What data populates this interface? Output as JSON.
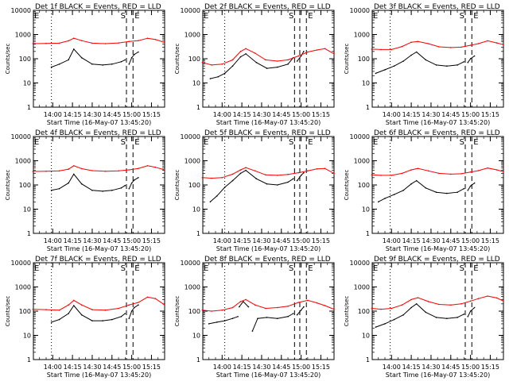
{
  "figure": {
    "time_range": [
      "13:45:20",
      "15:25:00"
    ],
    "x_ticks": [
      "14:00",
      "14:15",
      "14:30",
      "14:45",
      "15:00",
      "15:15"
    ],
    "y_ticks": [
      "1",
      "10",
      "100",
      "1000",
      "10000"
    ],
    "ylim": [
      1,
      10000
    ],
    "ylabel": "Counts/sec",
    "xlabel": "Start Time (16-May-07 13:45:20)",
    "colors": {
      "events": "#000000",
      "lld": "#ff0000",
      "axis": "#000000"
    }
  },
  "chart_data": [
    {
      "type": "line",
      "title": "Det 1f BLACK = Events, RED = LLD",
      "xlabel": "Start Time (16-May-07 13:45:20)",
      "ylabel": "Counts/sec",
      "marker_e": "E",
      "marker_s": "S",
      "marker_e2": "E",
      "markers": {
        "e_dotted": "13:59",
        "s_dashed": "14:56",
        "e_dashed": "15:01"
      },
      "series": [
        {
          "name": "Events",
          "color": "#000000",
          "x": [
            "13:59",
            "14:05",
            "14:12",
            "14:16",
            "14:22",
            "14:30",
            "14:38",
            "14:45",
            "14:52",
            "14:55"
          ],
          "values": [
            45,
            60,
            90,
            250,
            110,
            60,
            55,
            60,
            75,
            90
          ]
        },
        {
          "name": "Events",
          "color": "#000000",
          "x": [
            "14:58",
            "15:00",
            "15:02",
            "15:05"
          ],
          "values": [
            60,
            110,
            150,
            190
          ]
        },
        {
          "name": "LLD",
          "color": "#ff0000",
          "x": [
            "13:45",
            "13:55",
            "14:05",
            "14:12",
            "14:16",
            "14:22",
            "14:30",
            "14:40",
            "14:50",
            "14:58",
            "15:05",
            "15:12",
            "15:18",
            "15:25"
          ],
          "values": [
            420,
            430,
            440,
            550,
            700,
            560,
            440,
            420,
            450,
            520,
            560,
            700,
            620,
            470
          ]
        }
      ]
    },
    {
      "type": "line",
      "title": "Det 2f BLACK = Events, RED = LLD",
      "xlabel": "Start Time (16-May-07 13:45:20)",
      "ylabel": "Counts/sec",
      "marker_e": "E",
      "marker_s": "S",
      "marker_e2": "E",
      "markers": {
        "e_dotted": "14:02",
        "s_dashed": "14:55",
        "f_dashed": "14:59",
        "e_dashed": "15:04"
      },
      "series": [
        {
          "name": "Events",
          "color": "#000000",
          "x": [
            "13:51",
            "13:57",
            "14:02",
            "14:08",
            "14:14",
            "14:18",
            "14:26",
            "14:34",
            "14:42",
            "14:50",
            "14:54"
          ],
          "values": [
            15,
            18,
            25,
            50,
            120,
            160,
            70,
            40,
            45,
            60,
            110
          ]
        },
        {
          "name": "Events",
          "color": "#000000",
          "x": [
            "14:57",
            "15:00",
            "15:02"
          ],
          "values": [
            80,
            130,
            200
          ]
        },
        {
          "name": "LLD",
          "color": "#ff0000",
          "x": [
            "13:45",
            "13:52",
            "14:00",
            "14:08",
            "14:14",
            "14:18",
            "14:25",
            "14:33",
            "14:42",
            "14:50",
            "14:58",
            "15:05",
            "15:12",
            "15:18",
            "15:25"
          ],
          "values": [
            70,
            55,
            60,
            90,
            200,
            260,
            170,
            90,
            80,
            90,
            130,
            190,
            230,
            260,
            160
          ]
        }
      ]
    },
    {
      "type": "line",
      "title": "Det 3f BLACK = Events, RED = LLD",
      "xlabel": "Start Time (16-May-07 13:45:20)",
      "ylabel": "Counts/sec",
      "marker_e": "E",
      "marker_s": "S",
      "marker_e2": "E",
      "markers": {
        "e_dotted": "13:59",
        "s_dashed": "14:56",
        "e_dashed": "15:01"
      },
      "series": [
        {
          "name": "Events",
          "color": "#000000",
          "x": [
            "13:48",
            "13:55",
            "14:02",
            "14:09",
            "14:15",
            "14:19",
            "14:26",
            "14:34",
            "14:42",
            "14:50",
            "14:55"
          ],
          "values": [
            25,
            35,
            50,
            80,
            140,
            190,
            90,
            55,
            50,
            55,
            75
          ]
        },
        {
          "name": "Events",
          "color": "#000000",
          "x": [
            "14:58",
            "15:00",
            "15:03"
          ],
          "values": [
            70,
            100,
            130
          ]
        },
        {
          "name": "LLD",
          "color": "#ff0000",
          "x": [
            "13:45",
            "13:52",
            "14:00",
            "14:08",
            "14:15",
            "14:20",
            "14:28",
            "14:36",
            "14:45",
            "14:53",
            "15:00",
            "15:06",
            "15:13",
            "15:20",
            "15:25"
          ],
          "values": [
            250,
            240,
            240,
            320,
            480,
            520,
            420,
            310,
            290,
            300,
            360,
            420,
            550,
            450,
            380
          ]
        }
      ]
    },
    {
      "type": "line",
      "title": "Det 4f BLACK = Events, RED = LLD",
      "xlabel": "Start Time (16-May-07 13:45:20)",
      "ylabel": "Counts/sec",
      "marker_e": "E",
      "marker_s": "S",
      "marker_e2": "E",
      "markers": {
        "e_dotted": "13:59",
        "s_dashed": "14:56",
        "e_dashed": "15:01"
      },
      "series": [
        {
          "name": "Events",
          "color": "#000000",
          "x": [
            "13:59",
            "14:05",
            "14:12",
            "14:16",
            "14:22",
            "14:30",
            "14:38",
            "14:45",
            "14:52",
            "14:55"
          ],
          "values": [
            60,
            70,
            120,
            280,
            110,
            60,
            55,
            60,
            75,
            95
          ]
        },
        {
          "name": "Events",
          "color": "#000000",
          "x": [
            "14:58",
            "15:00",
            "15:02",
            "15:05"
          ],
          "values": [
            70,
            120,
            160,
            200
          ]
        },
        {
          "name": "LLD",
          "color": "#ff0000",
          "x": [
            "13:45",
            "13:55",
            "14:05",
            "14:12",
            "14:16",
            "14:22",
            "14:30",
            "14:40",
            "14:50",
            "14:58",
            "15:05",
            "15:12",
            "15:18",
            "15:25"
          ],
          "values": [
            360,
            370,
            380,
            450,
            620,
            470,
            390,
            370,
            380,
            420,
            480,
            620,
            540,
            420
          ]
        }
      ]
    },
    {
      "type": "line",
      "title": "Det 5f BLACK = Events, RED = LLD",
      "xlabel": "Start Time (16-May-07 13:45:20)",
      "ylabel": "Counts/sec",
      "marker_e": "E",
      "marker_s": "S",
      "marker_e2": "E",
      "markers": {
        "e_dotted": "14:02",
        "s_dashed": "14:55",
        "f_dashed": "14:59",
        "e_dashed": "15:04"
      },
      "series": [
        {
          "name": "Events",
          "color": "#000000",
          "x": [
            "13:51",
            "13:56",
            "14:02",
            "14:08",
            "14:14",
            "14:18",
            "14:26",
            "14:34",
            "14:42",
            "14:50",
            "14:54"
          ],
          "values": [
            20,
            35,
            80,
            150,
            300,
            400,
            180,
            110,
            100,
            130,
            180
          ]
        },
        {
          "name": "Events",
          "color": "#000000",
          "x": [
            "14:57",
            "15:00",
            "15:02"
          ],
          "values": [
            150,
            250,
            320
          ]
        },
        {
          "name": "LLD",
          "color": "#ff0000",
          "x": [
            "13:45",
            "13:52",
            "14:00",
            "14:08",
            "14:14",
            "14:18",
            "14:25",
            "14:33",
            "14:42",
            "14:50",
            "14:58",
            "15:05",
            "15:12",
            "15:18",
            "15:25"
          ],
          "values": [
            200,
            190,
            200,
            280,
            420,
            520,
            380,
            260,
            250,
            270,
            320,
            380,
            460,
            480,
            300
          ]
        }
      ]
    },
    {
      "type": "line",
      "title": "Det 6f BLACK = Events, RED = LLD",
      "xlabel": "Start Time (16-May-07 13:45:20)",
      "ylabel": "Counts/sec",
      "marker_e": "E",
      "marker_s": "S",
      "marker_e2": "E",
      "markers": {
        "e_dotted": "13:59",
        "s_dashed": "14:56",
        "e_dashed": "15:01"
      },
      "series": [
        {
          "name": "Events",
          "color": "#000000",
          "x": [
            "13:50",
            "13:55",
            "14:02",
            "14:09",
            "14:15",
            "14:19",
            "14:26",
            "14:34",
            "14:42",
            "14:50",
            "14:55"
          ],
          "values": [
            20,
            28,
            40,
            60,
            110,
            150,
            75,
            50,
            45,
            50,
            70
          ]
        },
        {
          "name": "Events",
          "color": "#000000",
          "x": [
            "14:58",
            "15:00",
            "15:03"
          ],
          "values": [
            60,
            90,
            120
          ]
        },
        {
          "name": "LLD",
          "color": "#ff0000",
          "x": [
            "13:45",
            "13:52",
            "14:00",
            "14:08",
            "14:15",
            "14:20",
            "14:28",
            "14:36",
            "14:45",
            "14:53",
            "15:00",
            "15:06",
            "15:13",
            "15:20",
            "15:25"
          ],
          "values": [
            260,
            250,
            250,
            300,
            420,
            480,
            380,
            300,
            280,
            290,
            340,
            390,
            500,
            420,
            350
          ]
        }
      ]
    },
    {
      "type": "line",
      "title": "Det 7f BLACK = Events, RED = LLD",
      "xlabel": "Start Time (16-May-07 13:45:20)",
      "ylabel": "Counts/sec",
      "marker_e": "E",
      "marker_s": "S",
      "marker_e2": "E",
      "markers": {
        "e_dotted": "13:59",
        "s_dashed": "14:56",
        "e_dashed": "15:01"
      },
      "series": [
        {
          "name": "Events",
          "color": "#000000",
          "x": [
            "13:59",
            "14:05",
            "14:12",
            "14:16",
            "14:22",
            "14:30",
            "14:38",
            "14:45",
            "14:52",
            "14:55"
          ],
          "values": [
            35,
            45,
            80,
            170,
            70,
            40,
            40,
            45,
            60,
            80
          ]
        },
        {
          "name": "Events",
          "color": "#000000",
          "x": [
            "14:58",
            "15:00",
            "15:02",
            "15:05"
          ],
          "values": [
            50,
            100,
            140,
            180
          ]
        },
        {
          "name": "LLD",
          "color": "#ff0000",
          "x": [
            "13:45",
            "13:55",
            "14:05",
            "14:12",
            "14:16",
            "14:22",
            "14:30",
            "14:40",
            "14:50",
            "14:58",
            "15:05",
            "15:12",
            "15:18",
            "15:25"
          ],
          "values": [
            120,
            115,
            110,
            180,
            280,
            180,
            115,
            110,
            130,
            180,
            230,
            380,
            330,
            180
          ]
        }
      ]
    },
    {
      "type": "line",
      "title": "Det 8f BLACK = Events, RED = LLD",
      "xlabel": "Start Time (16-May-07 13:45:20)",
      "ylabel": "Counts/sec",
      "marker_e": "E",
      "marker_s": "S",
      "marker_e2": "E",
      "markers": {
        "e_dotted": "14:02",
        "s_dashed": "14:55",
        "f_dashed": "14:59",
        "e_dashed": "15:04"
      },
      "series": [
        {
          "name": "Events",
          "color": "#000000",
          "x": [
            "13:50",
            "13:56",
            "14:02",
            "14:08",
            "14:12"
          ],
          "values": [
            30,
            35,
            40,
            50,
            60
          ]
        },
        {
          "name": "Events",
          "color": "#000000",
          "x": [
            "14:13",
            "14:16",
            "14:20"
          ],
          "values": [
            150,
            250,
            150
          ]
        },
        {
          "name": "Events",
          "color": "#000000",
          "x": [
            "14:23",
            "14:27",
            "14:34",
            "14:42",
            "14:50",
            "14:54"
          ],
          "values": [
            15,
            50,
            55,
            50,
            60,
            80
          ]
        },
        {
          "name": "Events",
          "color": "#000000",
          "x": [
            "14:57",
            "15:00",
            "15:02"
          ],
          "values": [
            70,
            110,
            150
          ]
        },
        {
          "name": "LLD",
          "color": "#ff0000",
          "x": [
            "13:45",
            "13:52",
            "14:00",
            "14:08",
            "14:14",
            "14:18",
            "14:25",
            "14:33",
            "14:42",
            "14:50",
            "14:58",
            "15:05",
            "15:12",
            "15:18",
            "15:25"
          ],
          "values": [
            110,
            100,
            110,
            140,
            250,
            300,
            180,
            130,
            140,
            160,
            230,
            280,
            220,
            170,
            120
          ]
        }
      ]
    },
    {
      "type": "line",
      "title": "Det 9f BLACK = Events, RED = LLD",
      "xlabel": "Start Time (16-May-07 13:45:20)",
      "ylabel": "Counts/sec",
      "marker_e": "E",
      "marker_s": "S",
      "marker_e2": "E",
      "markers": {
        "e_dotted": "13:59",
        "s_dashed": "14:56",
        "e_dashed": "15:01"
      },
      "series": [
        {
          "name": "Events",
          "color": "#000000",
          "x": [
            "13:48",
            "13:55",
            "14:02",
            "14:09",
            "14:15",
            "14:19",
            "14:26",
            "14:34",
            "14:42",
            "14:50",
            "14:55"
          ],
          "values": [
            22,
            30,
            45,
            70,
            140,
            200,
            90,
            55,
            50,
            55,
            75
          ]
        },
        {
          "name": "Events",
          "color": "#000000",
          "x": [
            "14:58",
            "15:00",
            "15:03"
          ],
          "values": [
            60,
            100,
            140
          ]
        },
        {
          "name": "LLD",
          "color": "#ff0000",
          "x": [
            "13:45",
            "13:52",
            "14:00",
            "14:08",
            "14:15",
            "14:20",
            "14:28",
            "14:36",
            "14:45",
            "14:53",
            "15:00",
            "15:06",
            "15:13",
            "15:20",
            "15:25"
          ],
          "values": [
            130,
            120,
            130,
            180,
            300,
            360,
            250,
            190,
            180,
            200,
            260,
            330,
            420,
            350,
            260
          ]
        }
      ]
    }
  ]
}
